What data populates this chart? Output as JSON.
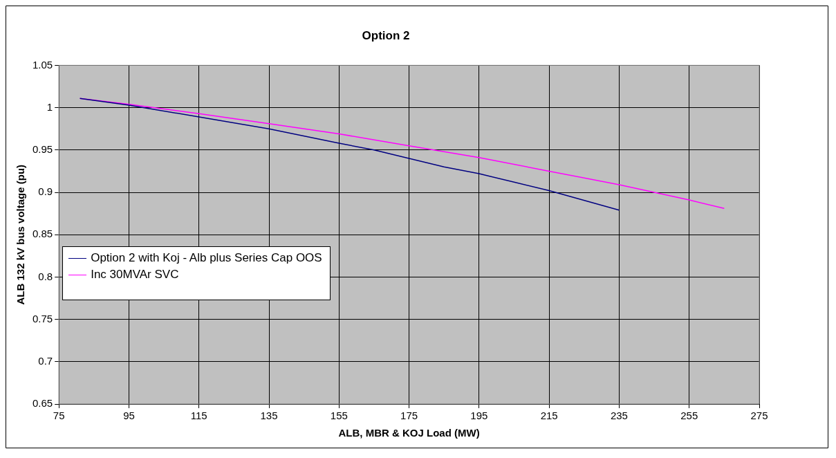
{
  "chart_data": {
    "type": "line",
    "title": "Option 2",
    "xlabel": "ALB, MBR & KOJ Load (MW)",
    "ylabel": "ALB 132 kV bus voltage (pu)",
    "xlim": [
      75,
      275
    ],
    "xticks": [
      75,
      95,
      115,
      135,
      155,
      175,
      195,
      215,
      235,
      255,
      275
    ],
    "ylim": [
      0.65,
      1.05
    ],
    "yticks": [
      0.65,
      0.7,
      0.75,
      0.8,
      0.85,
      0.9,
      0.95,
      1,
      1.05
    ],
    "grid": true,
    "legend": "bottom left",
    "marker": "none",
    "line_style": "solid",
    "series": [
      {
        "name": "Option 2 with Koj - Alb plus Series Cap OOS",
        "color": "#000080",
        "x": [
          81,
          95,
          115,
          135,
          155,
          165,
          175,
          185,
          195,
          205,
          215,
          235
        ],
        "values": [
          1.011,
          1.003,
          0.989,
          0.975,
          0.958,
          0.95,
          0.94,
          0.93,
          0.922,
          0.912,
          0.902,
          0.879
        ]
      },
      {
        "name": "Inc 30MVAr SVC",
        "color": "#ff00ff",
        "x": [
          81,
          95,
          115,
          135,
          155,
          175,
          195,
          215,
          235,
          245,
          255,
          265
        ],
        "values": [
          1.011,
          1.004,
          0.993,
          0.981,
          0.969,
          0.955,
          0.941,
          0.925,
          0.909,
          0.9,
          0.891,
          0.881
        ]
      }
    ]
  }
}
